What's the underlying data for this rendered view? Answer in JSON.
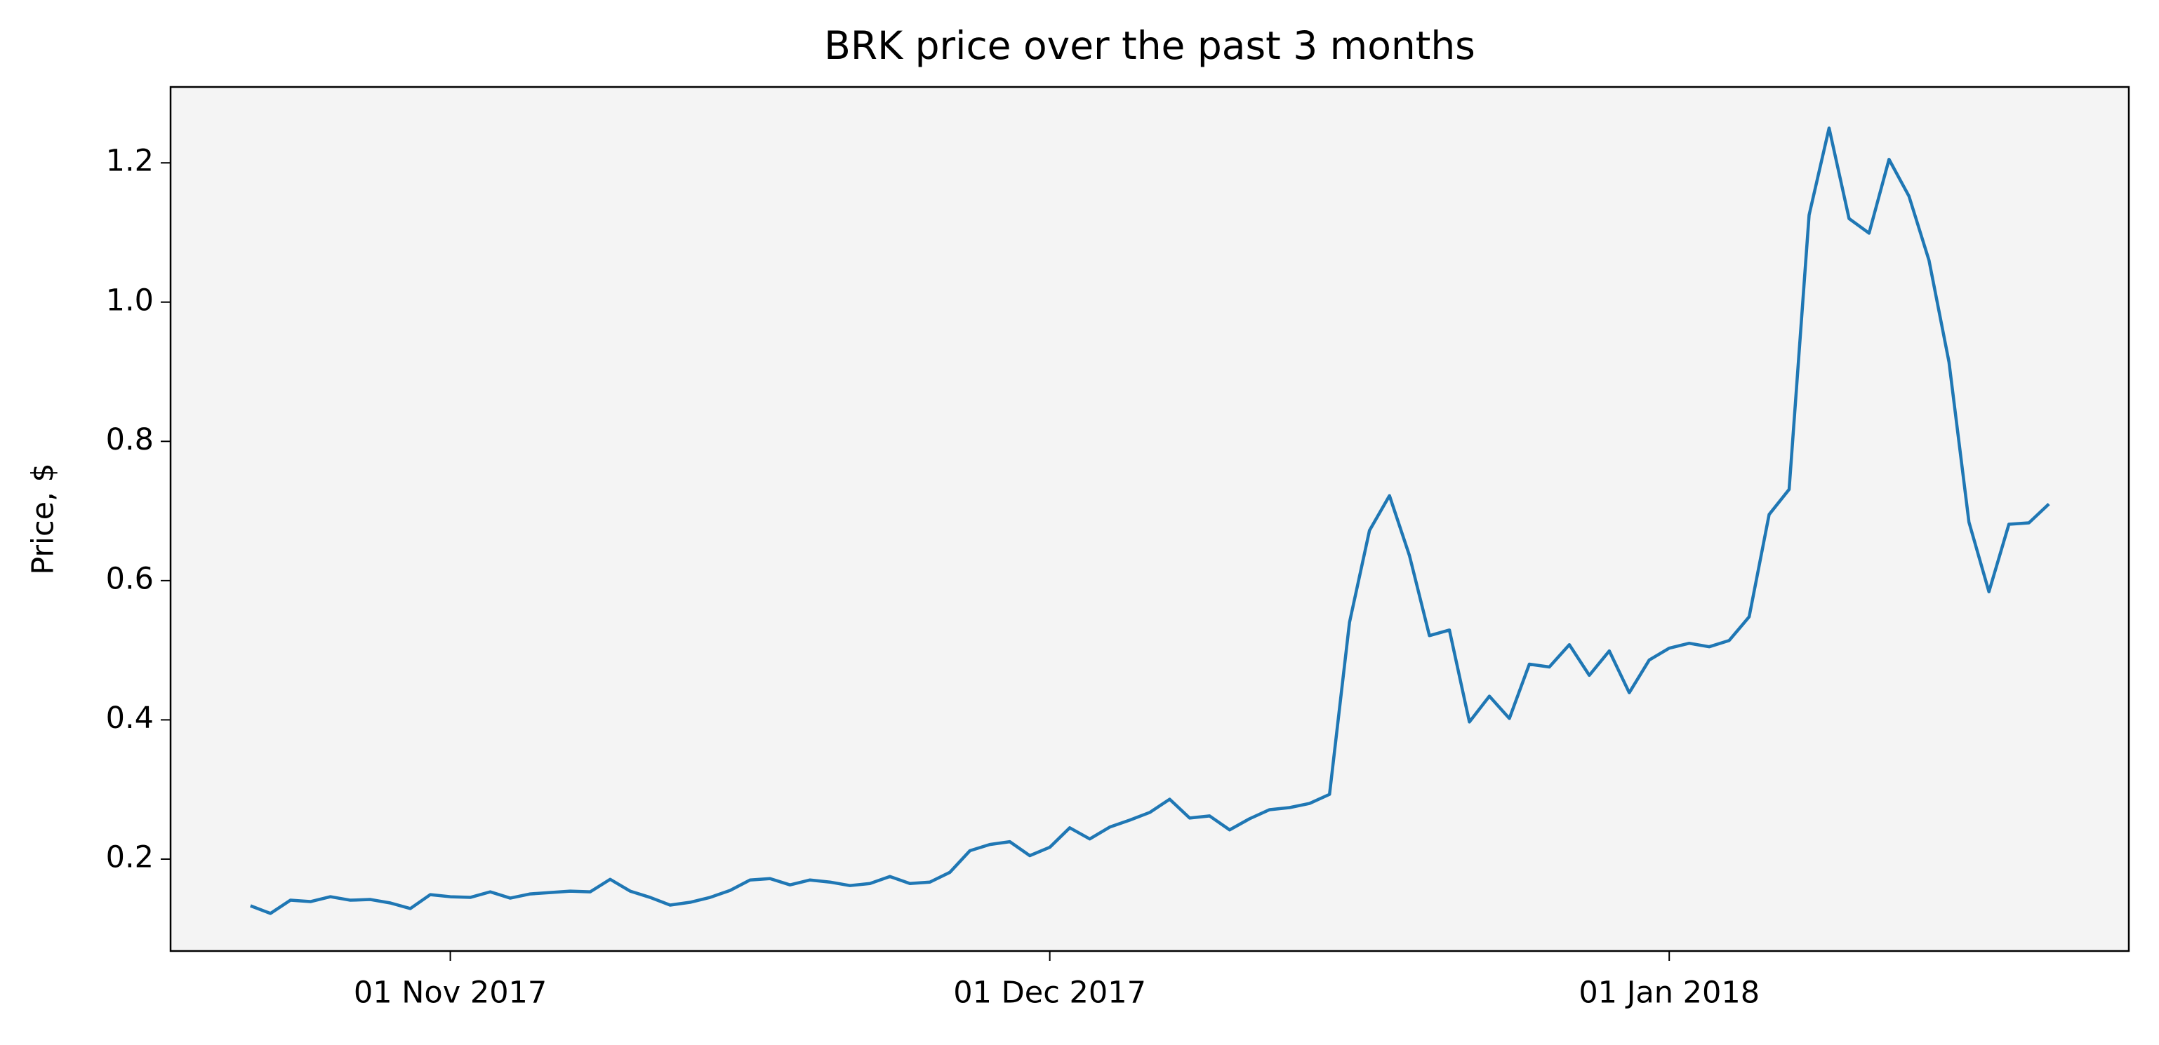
{
  "chart_data": {
    "type": "line",
    "title": "BRK price over the past 3 months",
    "y_label": "Price, $",
    "x": [
      "2017-10-22",
      "2017-10-23",
      "2017-10-24",
      "2017-10-25",
      "2017-10-26",
      "2017-10-27",
      "2017-10-28",
      "2017-10-29",
      "2017-10-30",
      "2017-10-31",
      "2017-11-01",
      "2017-11-02",
      "2017-11-03",
      "2017-11-04",
      "2017-11-05",
      "2017-11-06",
      "2017-11-07",
      "2017-11-08",
      "2017-11-09",
      "2017-11-10",
      "2017-11-11",
      "2017-11-12",
      "2017-11-13",
      "2017-11-14",
      "2017-11-15",
      "2017-11-16",
      "2017-11-17",
      "2017-11-18",
      "2017-11-19",
      "2017-11-20",
      "2017-11-21",
      "2017-11-22",
      "2017-11-23",
      "2017-11-24",
      "2017-11-25",
      "2017-11-26",
      "2017-11-27",
      "2017-11-28",
      "2017-11-29",
      "2017-11-30",
      "2017-12-01",
      "2017-12-02",
      "2017-12-03",
      "2017-12-04",
      "2017-12-05",
      "2017-12-06",
      "2017-12-07",
      "2017-12-08",
      "2017-12-09",
      "2017-12-10",
      "2017-12-11",
      "2017-12-12",
      "2017-12-13",
      "2017-12-14",
      "2017-12-15",
      "2017-12-16",
      "2017-12-17",
      "2017-12-18",
      "2017-12-19",
      "2017-12-20",
      "2017-12-21",
      "2017-12-22",
      "2017-12-23",
      "2017-12-24",
      "2017-12-25",
      "2017-12-26",
      "2017-12-27",
      "2017-12-28",
      "2017-12-29",
      "2017-12-30",
      "2017-12-31",
      "2018-01-01",
      "2018-01-02",
      "2018-01-03",
      "2018-01-04",
      "2018-01-05",
      "2018-01-06",
      "2018-01-07",
      "2018-01-08",
      "2018-01-09",
      "2018-01-10",
      "2018-01-11",
      "2018-01-12",
      "2018-01-13",
      "2018-01-14",
      "2018-01-15",
      "2018-01-16",
      "2018-01-17",
      "2018-01-18",
      "2018-01-19",
      "2018-01-20"
    ],
    "series": [
      {
        "name": "BRK",
        "color": "#1f77b4",
        "values": [
          0.133,
          0.122,
          0.141,
          0.139,
          0.146,
          0.141,
          0.142,
          0.137,
          0.129,
          0.149,
          0.146,
          0.145,
          0.153,
          0.144,
          0.15,
          0.152,
          0.154,
          0.153,
          0.171,
          0.154,
          0.145,
          0.134,
          0.138,
          0.145,
          0.155,
          0.17,
          0.172,
          0.163,
          0.17,
          0.167,
          0.162,
          0.165,
          0.175,
          0.165,
          0.167,
          0.181,
          0.212,
          0.221,
          0.225,
          0.205,
          0.217,
          0.245,
          0.229,
          0.246,
          0.256,
          0.267,
          0.286,
          0.259,
          0.262,
          0.242,
          0.258,
          0.271,
          0.274,
          0.28,
          0.293,
          0.54,
          0.672,
          0.722,
          0.636,
          0.521,
          0.529,
          0.397,
          0.434,
          0.402,
          0.48,
          0.476,
          0.508,
          0.464,
          0.499,
          0.439,
          0.486,
          0.503,
          0.51,
          0.505,
          0.514,
          0.548,
          0.695,
          0.731,
          1.125,
          1.25,
          1.12,
          1.099,
          1.205,
          1.152,
          1.06,
          0.914,
          0.684,
          0.584,
          0.681,
          0.683,
          0.71
        ]
      }
    ],
    "xlim": [
      "2017-10-18",
      "2018-01-24"
    ],
    "xticks": [
      {
        "value": "2017-11-01",
        "label": "01 Nov 2017"
      },
      {
        "value": "2017-12-01",
        "label": "01 Dec 2017"
      },
      {
        "value": "2018-01-01",
        "label": "01 Jan 2018"
      }
    ],
    "ylim": [
      0.068,
      1.309
    ],
    "yticks": [
      0.2,
      {
        "value": 0.4,
        "label": "0.4"
      },
      {
        "value": 0.6,
        "label": "0.6"
      },
      {
        "value": 0.8,
        "label": "0.8"
      },
      {
        "value": 1.0,
        "label": "1.0"
      },
      {
        "value": 1.2,
        "label": "1.2"
      }
    ],
    "grid": false
  }
}
